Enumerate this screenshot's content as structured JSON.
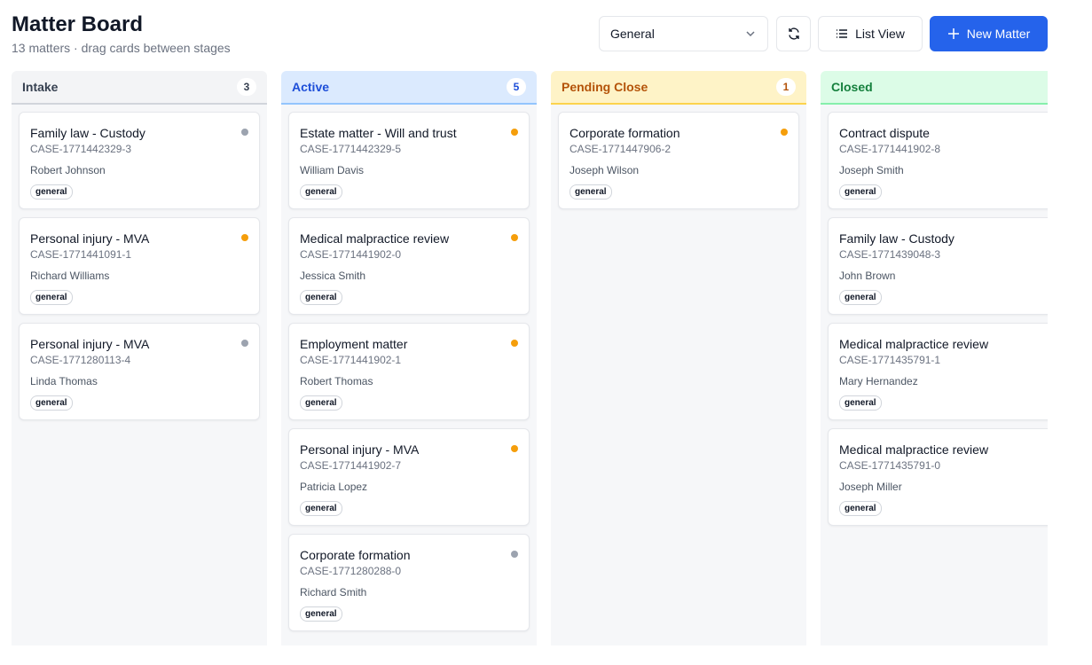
{
  "header": {
    "title": "Matter Board",
    "subtitle": "13 matters · drag cards between stages"
  },
  "toolbar": {
    "filter": "General",
    "list_view": "List View",
    "new_matter": "New Matter"
  },
  "columns": [
    {
      "name": "Intake",
      "count": 3,
      "cards": [
        {
          "title": "Family law - Custody",
          "case": "CASE-1771442329-3",
          "client": "Robert Johnson",
          "tag": "general",
          "indicator": "#9ca3af"
        },
        {
          "title": "Personal injury - MVA",
          "case": "CASE-1771441091-1",
          "client": "Richard Williams",
          "tag": "general",
          "indicator": "#f59e0b"
        },
        {
          "title": "Personal injury - MVA",
          "case": "CASE-1771280113-4",
          "client": "Linda Thomas",
          "tag": "general",
          "indicator": "#9ca3af"
        }
      ]
    },
    {
      "name": "Active",
      "count": 5,
      "cards": [
        {
          "title": "Estate matter - Will and trust",
          "case": "CASE-1771442329-5",
          "client": "William Davis",
          "tag": "general",
          "indicator": "#f59e0b"
        },
        {
          "title": "Medical malpractice review",
          "case": "CASE-1771441902-0",
          "client": "Jessica Smith",
          "tag": "general",
          "indicator": "#f59e0b"
        },
        {
          "title": "Employment matter",
          "case": "CASE-1771441902-1",
          "client": "Robert Thomas",
          "tag": "general",
          "indicator": "#f59e0b"
        },
        {
          "title": "Personal injury - MVA",
          "case": "CASE-1771441902-7",
          "client": "Patricia Lopez",
          "tag": "general",
          "indicator": "#f59e0b"
        },
        {
          "title": "Corporate formation",
          "case": "CASE-1771280288-0",
          "client": "Richard Smith",
          "tag": "general",
          "indicator": "#9ca3af"
        }
      ]
    },
    {
      "name": "Pending Close",
      "count": 1,
      "cards": [
        {
          "title": "Corporate formation",
          "case": "CASE-1771447906-2",
          "client": "Joseph Wilson",
          "tag": "general",
          "indicator": "#f59e0b"
        }
      ]
    },
    {
      "name": "Closed",
      "cards": [
        {
          "title": "Contract dispute",
          "case": "CASE-1771441902-8",
          "client": "Joseph Smith",
          "tag": "general"
        },
        {
          "title": "Family law - Custody",
          "case": "CASE-1771439048-3",
          "client": "John Brown",
          "tag": "general"
        },
        {
          "title": "Medical malpractice review",
          "case": "CASE-1771435791-1",
          "client": "Mary Hernandez",
          "tag": "general"
        },
        {
          "title": "Medical malpractice review",
          "case": "CASE-1771435791-0",
          "client": "Joseph Miller",
          "tag": "general"
        }
      ]
    }
  ]
}
